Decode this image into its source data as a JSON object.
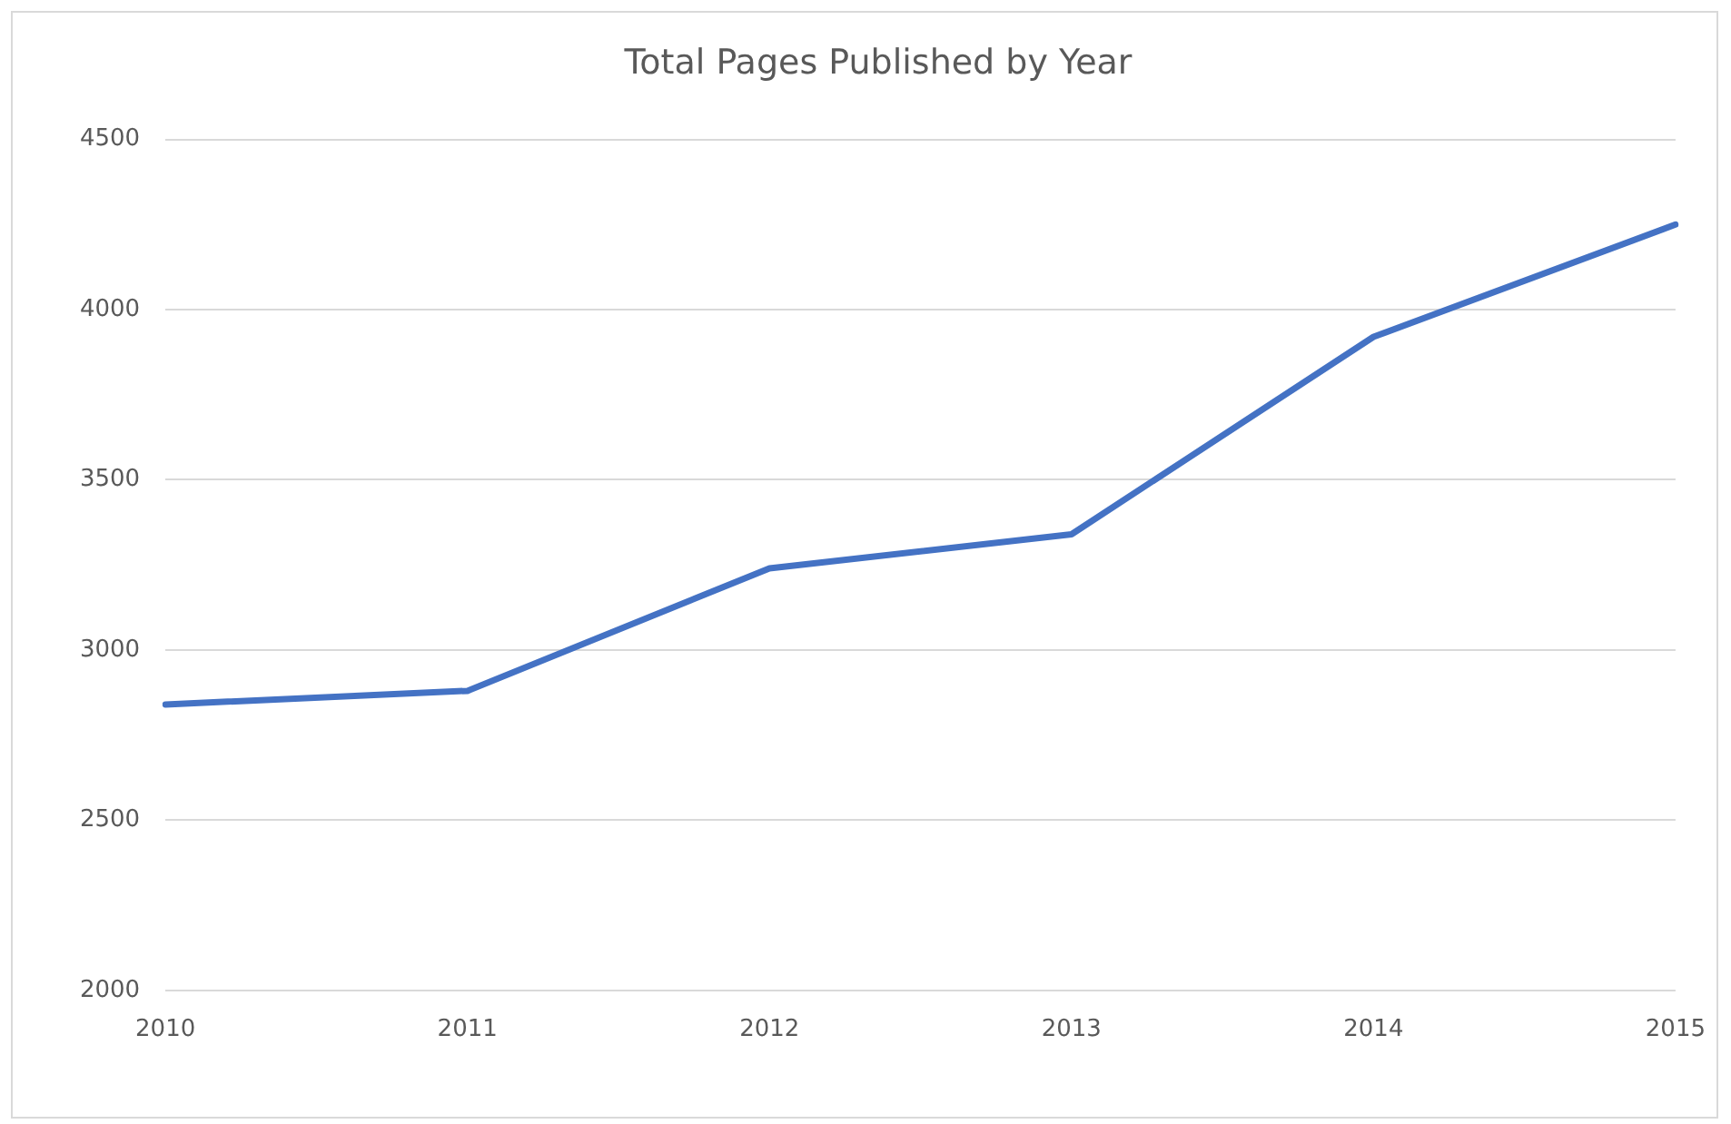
{
  "chart_data": {
    "type": "line",
    "title": "Total Pages Published by Year",
    "categories": [
      "2010",
      "2011",
      "2012",
      "2013",
      "2014",
      "2015"
    ],
    "series": [
      {
        "color": "#4472c4",
        "values": [
          2840,
          2880,
          3240,
          3340,
          3920,
          4250
        ]
      }
    ],
    "ylim": [
      2000,
      4500
    ],
    "yticks": [
      2000,
      2500,
      3000,
      3500,
      4000,
      4500
    ],
    "grid": "y",
    "legend": false,
    "marker": "none",
    "line_style": "solid"
  }
}
